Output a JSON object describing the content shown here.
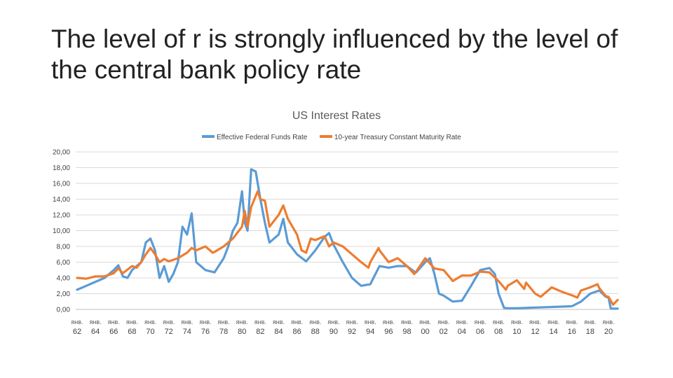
{
  "slide": {
    "title": "The level of r is strongly influenced by the level of the central bank policy rate"
  },
  "chart_data": {
    "type": "line",
    "title": "US Interest Rates",
    "xlabel": "",
    "ylabel": "",
    "ylim": [
      0,
      20
    ],
    "xlim": [
      1962,
      2021
    ],
    "grid": true,
    "legend_position": "top-center",
    "y_ticks": [
      "0,00",
      "2,00",
      "4,00",
      "6,00",
      "8,00",
      "10,00",
      "12,00",
      "14,00",
      "16,00",
      "18,00",
      "20,00"
    ],
    "x_tick_month": "янв.",
    "x_tick_years": [
      "62",
      "64",
      "66",
      "68",
      "70",
      "72",
      "74",
      "76",
      "78",
      "80",
      "82",
      "84",
      "86",
      "88",
      "90",
      "92",
      "94",
      "96",
      "98",
      "00",
      "02",
      "04",
      "06",
      "08",
      "10",
      "12",
      "14",
      "16",
      "18",
      "20"
    ],
    "series": [
      {
        "name": "Effective Federal Funds Rate",
        "color": "#5b9bd5",
        "points": [
          [
            1962,
            2.5
          ],
          [
            1963,
            3.0
          ],
          [
            1964,
            3.5
          ],
          [
            1965,
            4.0
          ],
          [
            1966,
            5.0
          ],
          [
            1966.5,
            5.6
          ],
          [
            1967,
            4.2
          ],
          [
            1967.5,
            4.0
          ],
          [
            1968,
            5.0
          ],
          [
            1969,
            6.0
          ],
          [
            1969.5,
            8.5
          ],
          [
            1970,
            9.0
          ],
          [
            1970.5,
            7.5
          ],
          [
            1971,
            4.0
          ],
          [
            1971.5,
            5.5
          ],
          [
            1972,
            3.5
          ],
          [
            1972.5,
            4.5
          ],
          [
            1973,
            6.0
          ],
          [
            1973.5,
            10.5
          ],
          [
            1974,
            9.5
          ],
          [
            1974.5,
            12.2
          ],
          [
            1975,
            6.0
          ],
          [
            1975.5,
            5.5
          ],
          [
            1976,
            5.0
          ],
          [
            1977,
            4.7
          ],
          [
            1978,
            6.5
          ],
          [
            1978.5,
            8.0
          ],
          [
            1979,
            10.0
          ],
          [
            1979.5,
            11.0
          ],
          [
            1980,
            15.0
          ],
          [
            1980.3,
            11.0
          ],
          [
            1980.6,
            10.0
          ],
          [
            1981,
            17.8
          ],
          [
            1981.5,
            17.5
          ],
          [
            1982,
            14.0
          ],
          [
            1982.5,
            11.0
          ],
          [
            1983,
            8.5
          ],
          [
            1984,
            9.5
          ],
          [
            1984.5,
            11.5
          ],
          [
            1985,
            8.5
          ],
          [
            1986,
            7.0
          ],
          [
            1987,
            6.1
          ],
          [
            1988,
            7.5
          ],
          [
            1989,
            9.2
          ],
          [
            1989.5,
            9.7
          ],
          [
            1990,
            8.2
          ],
          [
            1991,
            6.0
          ],
          [
            1992,
            4.0
          ],
          [
            1993,
            3.0
          ],
          [
            1994,
            3.2
          ],
          [
            1995,
            5.5
          ],
          [
            1996,
            5.3
          ],
          [
            1997,
            5.5
          ],
          [
            1998,
            5.5
          ],
          [
            1998.8,
            4.8
          ],
          [
            1999,
            4.7
          ],
          [
            2000,
            6.0
          ],
          [
            2000.5,
            6.5
          ],
          [
            2001,
            4.5
          ],
          [
            2001.5,
            2.0
          ],
          [
            2002,
            1.75
          ],
          [
            2003,
            1.0
          ],
          [
            2004,
            1.1
          ],
          [
            2005,
            3.0
          ],
          [
            2006,
            5.0
          ],
          [
            2007,
            5.25
          ],
          [
            2007.6,
            4.5
          ],
          [
            2008,
            2.0
          ],
          [
            2008.6,
            0.2
          ],
          [
            2009,
            0.15
          ],
          [
            2010,
            0.15
          ],
          [
            2016,
            0.4
          ],
          [
            2017,
            1.0
          ],
          [
            2018,
            2.0
          ],
          [
            2019,
            2.4
          ],
          [
            2019.7,
            1.6
          ],
          [
            2020,
            1.5
          ],
          [
            2020.25,
            0.1
          ],
          [
            2021,
            0.1
          ]
        ]
      },
      {
        "name": "10-year Treasury Constant Maturity Rate",
        "color": "#ed7d31",
        "points": [
          [
            1962,
            4.0
          ],
          [
            1963,
            3.9
          ],
          [
            1964,
            4.2
          ],
          [
            1965,
            4.2
          ],
          [
            1966,
            4.6
          ],
          [
            1966.5,
            5.2
          ],
          [
            1967,
            4.6
          ],
          [
            1968,
            5.5
          ],
          [
            1968.5,
            5.3
          ],
          [
            1969,
            6.0
          ],
          [
            1969.5,
            7.0
          ],
          [
            1970,
            7.8
          ],
          [
            1970.5,
            7.0
          ],
          [
            1971,
            6.0
          ],
          [
            1971.5,
            6.4
          ],
          [
            1972,
            6.1
          ],
          [
            1973,
            6.5
          ],
          [
            1974,
            7.2
          ],
          [
            1974.5,
            7.8
          ],
          [
            1975,
            7.5
          ],
          [
            1976,
            8.0
          ],
          [
            1976.8,
            7.2
          ],
          [
            1977,
            7.3
          ],
          [
            1978,
            8.0
          ],
          [
            1979,
            9.0
          ],
          [
            1980,
            10.5
          ],
          [
            1980.3,
            12.5
          ],
          [
            1980.6,
            10.5
          ],
          [
            1981,
            13.0
          ],
          [
            1981.7,
            15.0
          ],
          [
            1982,
            14.0
          ],
          [
            1982.5,
            13.8
          ],
          [
            1983,
            10.5
          ],
          [
            1984,
            12.0
          ],
          [
            1984.5,
            13.2
          ],
          [
            1985,
            11.5
          ],
          [
            1986,
            9.5
          ],
          [
            1986.5,
            7.5
          ],
          [
            1987,
            7.2
          ],
          [
            1987.5,
            9.0
          ],
          [
            1988,
            8.8
          ],
          [
            1989,
            9.3
          ],
          [
            1989.5,
            8.0
          ],
          [
            1990,
            8.5
          ],
          [
            1991,
            8.0
          ],
          [
            1992,
            7.0
          ],
          [
            1993,
            6.0
          ],
          [
            1993.8,
            5.3
          ],
          [
            1994,
            6.0
          ],
          [
            1994.9,
            7.8
          ],
          [
            1995,
            7.5
          ],
          [
            1996,
            6.0
          ],
          [
            1997,
            6.5
          ],
          [
            1998,
            5.5
          ],
          [
            1998.8,
            4.5
          ],
          [
            1999,
            4.8
          ],
          [
            2000,
            6.5
          ],
          [
            2001,
            5.2
          ],
          [
            2002,
            5.0
          ],
          [
            2002.8,
            3.9
          ],
          [
            2003,
            3.6
          ],
          [
            2004,
            4.3
          ],
          [
            2005,
            4.3
          ],
          [
            2006,
            4.8
          ],
          [
            2007,
            4.7
          ],
          [
            2008,
            3.6
          ],
          [
            2008.8,
            2.5
          ],
          [
            2009,
            3.0
          ],
          [
            2010,
            3.7
          ],
          [
            2010.8,
            2.6
          ],
          [
            2011,
            3.4
          ],
          [
            2012,
            2.0
          ],
          [
            2012.6,
            1.6
          ],
          [
            2013,
            2.0
          ],
          [
            2013.8,
            2.8
          ],
          [
            2014,
            2.7
          ],
          [
            2015,
            2.2
          ],
          [
            2016,
            1.8
          ],
          [
            2016.6,
            1.5
          ],
          [
            2017,
            2.4
          ],
          [
            2018,
            2.8
          ],
          [
            2018.8,
            3.2
          ],
          [
            2019,
            2.7
          ],
          [
            2019.7,
            1.7
          ],
          [
            2020,
            1.6
          ],
          [
            2020.5,
            0.6
          ],
          [
            2021,
            1.2
          ]
        ]
      }
    ]
  }
}
